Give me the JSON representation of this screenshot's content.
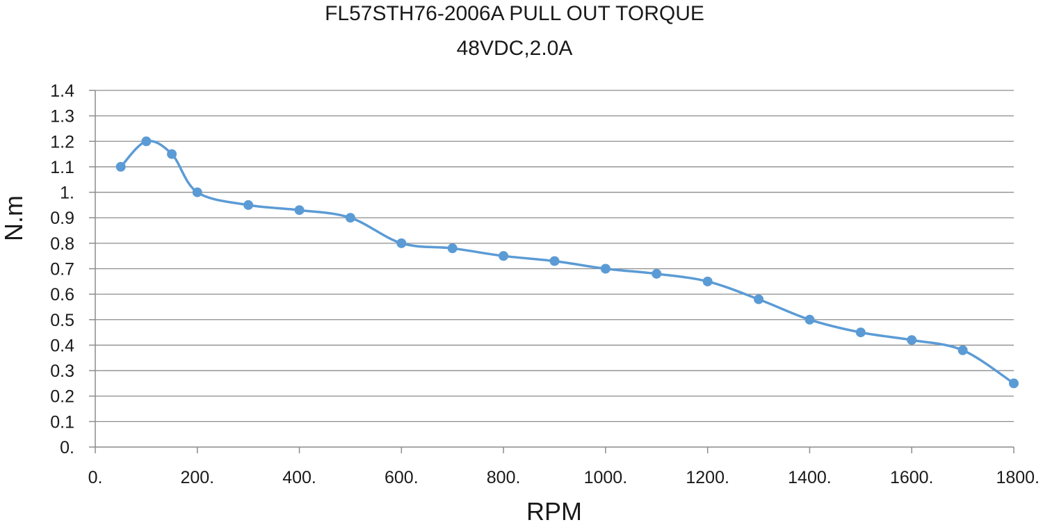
{
  "chart_data": {
    "type": "line",
    "title": "FL57STH76-2006A PULL OUT TORQUE",
    "subtitle": "48VDC,2.0A",
    "xlabel": "RPM",
    "ylabel": "N.m",
    "xlim": [
      0,
      1800
    ],
    "ylim": [
      0,
      1.4
    ],
    "x_ticks": [
      0,
      200,
      400,
      600,
      800,
      1000,
      1200,
      1400,
      1600,
      1800
    ],
    "x_tick_labels": [
      "0.",
      "200.",
      "400.",
      "600.",
      "800.",
      "1000.",
      "1200.",
      "1400.",
      "1600.",
      "1800."
    ],
    "y_ticks": [
      0,
      0.1,
      0.2,
      0.3,
      0.4,
      0.5,
      0.6,
      0.7,
      0.8,
      0.9,
      1,
      1.1,
      1.2,
      1.3,
      1.4
    ],
    "y_tick_labels": [
      "0.",
      "0.1",
      "0.2",
      "0.3",
      "0.4",
      "0.5",
      "0.6",
      "0.7",
      "0.8",
      "0.9",
      "1.",
      "1.1",
      "1.2",
      "1.3",
      "1.4"
    ],
    "grid": true,
    "legend": "none",
    "series": [
      {
        "color": "#5b9bd5",
        "smooth": true,
        "x": [
          50,
          100,
          150,
          200,
          300,
          400,
          500,
          600,
          700,
          800,
          900,
          1000,
          1100,
          1200,
          1300,
          1400,
          1500,
          1600,
          1700,
          1800
        ],
        "y": [
          1.1,
          1.2,
          1.15,
          1.0,
          0.95,
          0.93,
          0.9,
          0.8,
          0.78,
          0.75,
          0.73,
          0.7,
          0.68,
          0.65,
          0.58,
          0.5,
          0.45,
          0.42,
          0.38,
          0.25
        ]
      }
    ]
  }
}
